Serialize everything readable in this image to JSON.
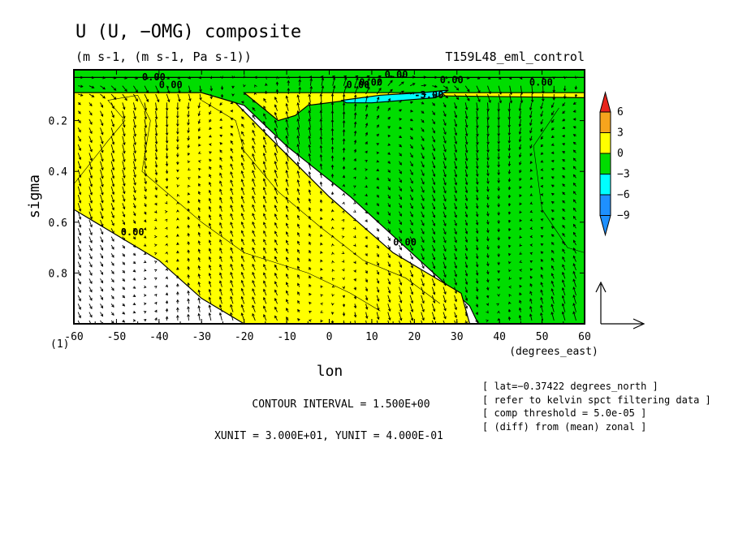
{
  "chart_data": {
    "type": "heatmap",
    "title": "U (U, −OMG) composite",
    "subtitle": "(m s-1, (m s-1, Pa s-1))",
    "run_label": "T159L48_eml_control",
    "xlabel": "lon",
    "xunit_label": "(degrees_east)",
    "ylabel": "sigma",
    "corner_label": "(1)",
    "xlim": [
      -60,
      60
    ],
    "ylim": [
      1.0,
      0.0
    ],
    "y_reversed": true,
    "x_ticks": [
      "-60",
      "-50",
      "-40",
      "-30",
      "-20",
      "-10",
      "0",
      "10",
      "20",
      "30",
      "40",
      "50",
      "60"
    ],
    "x_tick_values": [
      -60,
      -50,
      -40,
      -30,
      -20,
      -10,
      0,
      10,
      20,
      30,
      40,
      50,
      60
    ],
    "y_ticks": [
      "0.2",
      "0.4",
      "0.6",
      "0.8"
    ],
    "y_tick_values": [
      0.2,
      0.4,
      0.6,
      0.8
    ],
    "colorbar": {
      "levels": [
        "6",
        "3",
        "0",
        "−3",
        "−6",
        "−9"
      ],
      "bands": [
        {
          "range": [
            6,
            9
          ],
          "color": "#e8241c"
        },
        {
          "range": [
            3,
            6
          ],
          "color": "#f6a41d"
        },
        {
          "range": [
            0,
            3
          ],
          "color": "#ffff00"
        },
        {
          "range": [
            -3,
            0
          ],
          "color": "#00dd00"
        },
        {
          "range": [
            -6,
            -3
          ],
          "color": "#00ffff"
        },
        {
          "range": [
            -9,
            -6
          ],
          "color": "#1e90ff"
        }
      ],
      "triangle_top_color": "#e8241c",
      "triangle_bottom_color": "#1e90ff"
    },
    "regions": [
      {
        "name": "westward-green",
        "color": "#00dd00",
        "polygon": [
          [
            -60,
            0
          ],
          [
            60,
            0
          ],
          [
            60,
            1.0
          ],
          [
            35,
            1.0
          ],
          [
            33,
            0.93
          ],
          [
            18,
            0.7
          ],
          [
            5,
            0.5
          ],
          [
            -10,
            0.3
          ],
          [
            -20,
            0.14
          ],
          [
            -30,
            0.09
          ],
          [
            -60,
            0.09
          ]
        ]
      },
      {
        "name": "eastward-yellow-west",
        "color": "#ffff00",
        "polygon": [
          [
            -60,
            0.09
          ],
          [
            -30,
            0.09
          ],
          [
            -22,
            0.13
          ],
          [
            -12,
            0.3
          ],
          [
            0,
            0.5
          ],
          [
            15,
            0.72
          ],
          [
            31,
            0.88
          ],
          [
            33,
            1.0
          ],
          [
            -20,
            1.0
          ],
          [
            -30,
            0.9
          ],
          [
            -40,
            0.75
          ],
          [
            -55,
            0.6
          ],
          [
            -60,
            0.55
          ]
        ]
      },
      {
        "name": "eastward-yellow-upper",
        "color": "#ffff00",
        "polygon": [
          [
            -20,
            0.09
          ],
          [
            60,
            0.09
          ],
          [
            60,
            0.11
          ],
          [
            14,
            0.1
          ],
          [
            -5,
            0.14
          ],
          [
            -8,
            0.18
          ],
          [
            -12,
            0.2
          ]
        ]
      },
      {
        "name": "cyan-minimum",
        "color": "#00ffff",
        "polygon": [
          [
            3,
            0.12
          ],
          [
            12,
            0.1
          ],
          [
            22,
            0.09
          ],
          [
            28,
            0.08
          ],
          [
            25,
            0.11
          ],
          [
            10,
            0.13
          ],
          [
            4,
            0.13
          ]
        ]
      },
      {
        "name": "top-green-band",
        "color": "#00dd00",
        "polygon": [
          [
            -60,
            0
          ],
          [
            60,
            0
          ],
          [
            60,
            0.03
          ],
          [
            -60,
            0.03
          ]
        ]
      }
    ],
    "contour_labels": [
      {
        "text": "0.00",
        "x": -44,
        "y": 0.01
      },
      {
        "text": "0.00",
        "x": -40,
        "y": 0.04
      },
      {
        "text": "0.00",
        "x": 13,
        "y": 0.0
      },
      {
        "text": "0.00",
        "x": 7,
        "y": 0.03
      },
      {
        "text": "0.00",
        "x": 4,
        "y": 0.04
      },
      {
        "text": "-3.00",
        "x": 20,
        "y": 0.08
      },
      {
        "text": "0.00",
        "x": 26,
        "y": 0.02
      },
      {
        "text": "0.00",
        "x": 47,
        "y": 0.03
      },
      {
        "text": "0.00",
        "x": -49,
        "y": 0.62
      },
      {
        "text": "0.00",
        "x": 15,
        "y": 0.66
      }
    ],
    "vector_reference": {
      "xunit": 30.0,
      "yunit": 0.4
    }
  },
  "footer": {
    "contour_interval": "CONTOUR INTERVAL = 1.500E+00",
    "units": "XUNIT = 3.000E+01, YUNIT = 4.000E-01",
    "notes": [
      "[ lat=−0.37422 degrees_north ]",
      "[ refer to kelvin spct filtering data ]",
      "[ comp threshold = 5.0e-05 ]",
      "[ (diff) from (mean) zonal ]"
    ]
  }
}
